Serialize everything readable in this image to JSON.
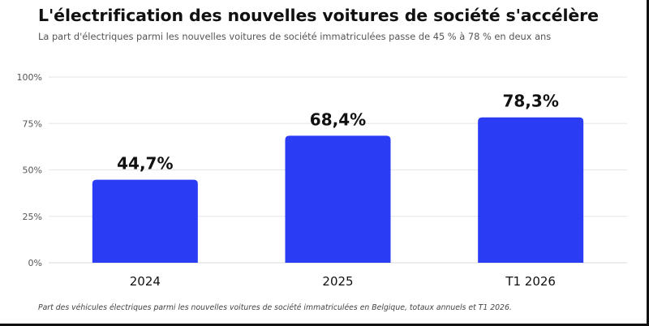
{
  "header": {
    "title": "L'électrification des nouvelles voitures de société s'accélère",
    "subtitle": "La part d'électriques parmi les nouvelles voitures de société immatriculées passe de 45 % à 78 % en deux ans"
  },
  "footer": {
    "note": "Part des véhicules électriques parmi les nouvelles voitures de société immatriculées en Belgique, totaux annuels et T1 2026."
  },
  "chart_data": {
    "type": "bar",
    "categories": [
      "2024",
      "2025",
      "T1 2026"
    ],
    "values": [
      44.7,
      68.4,
      78.3
    ],
    "value_labels": [
      "44,7%",
      "68,4%",
      "78,3%"
    ],
    "ylim": [
      0,
      100
    ],
    "y_ticks": [
      0,
      25,
      50,
      75,
      100
    ],
    "y_tick_labels": [
      "0%",
      "25%",
      "50%",
      "75%",
      "100%"
    ],
    "xlabel": "",
    "ylabel": "",
    "grid": true,
    "legend": "none",
    "bar_color": "#2b3cf5"
  }
}
